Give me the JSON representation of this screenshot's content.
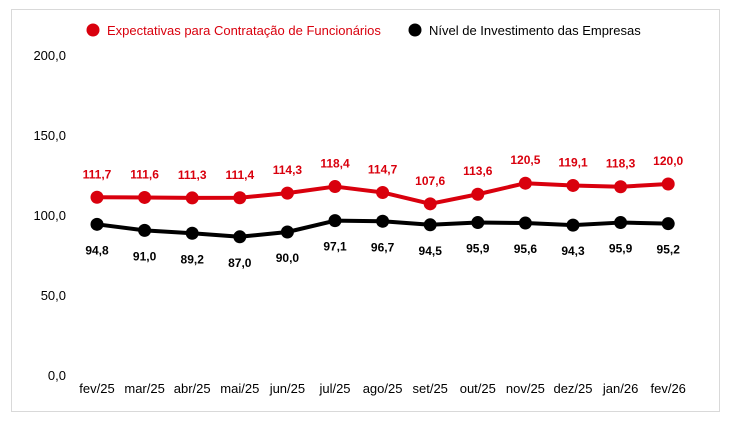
{
  "chart_data": {
    "type": "line",
    "categories": [
      "fev/25",
      "mar/25",
      "abr/25",
      "mai/25",
      "jun/25",
      "jul/25",
      "ago/25",
      "set/25",
      "out/25",
      "nov/25",
      "dez/25",
      "jan/26",
      "fev/26"
    ],
    "series": [
      {
        "name": "Expectativas para Contratação de Funcionários",
        "color": "#d9000d",
        "values": [
          111.7,
          111.6,
          111.3,
          111.4,
          114.3,
          118.4,
          114.7,
          107.6,
          113.6,
          120.5,
          119.1,
          118.3,
          120.0
        ],
        "labels": [
          "111,7",
          "111,6",
          "111,3",
          "111,4",
          "114,3",
          "118,4",
          "114,7",
          "107,6",
          "113,6",
          "120,5",
          "119,1",
          "118,3",
          "120,0"
        ],
        "label_position": "above"
      },
      {
        "name": "Nível de Investimento das Empresas",
        "color": "#000000",
        "values": [
          94.8,
          91.0,
          89.2,
          87.0,
          90.0,
          97.1,
          96.7,
          94.5,
          95.9,
          95.6,
          94.3,
          95.9,
          95.2
        ],
        "labels": [
          "94,8",
          "91,0",
          "89,2",
          "87,0",
          "90,0",
          "97,1",
          "96,7",
          "94,5",
          "95,9",
          "95,6",
          "94,3",
          "95,9",
          "95,2"
        ],
        "label_position": "below"
      }
    ],
    "ylim": [
      0,
      200
    ],
    "yticks": [
      0,
      50,
      100,
      150,
      200
    ],
    "ytick_labels": [
      "0,0",
      "50,0",
      "100,0",
      "150,0",
      "200,0"
    ],
    "grid": false,
    "legend_position": "top"
  }
}
